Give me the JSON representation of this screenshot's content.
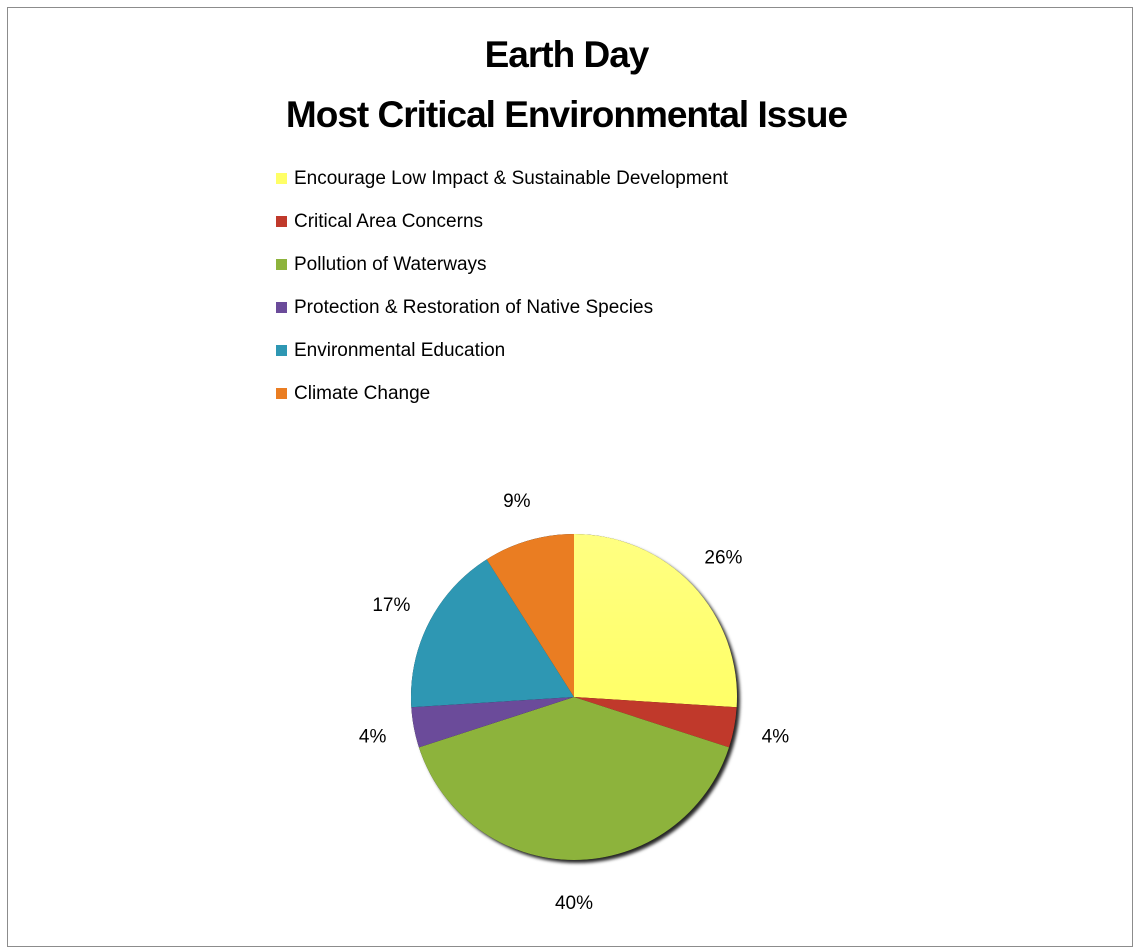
{
  "chart_data": {
    "type": "pie",
    "title": [
      "Earth Day",
      "Most Critical Environmental Issue"
    ],
    "legend_position": "top",
    "series": [
      {
        "name": "Encourage Low Impact & Sustainable Development",
        "value": 26,
        "label": "26%",
        "color": "#ffff66"
      },
      {
        "name": "Critical Area Concerns",
        "value": 4,
        "label": "4%",
        "color": "#c0392b"
      },
      {
        "name": "Pollution of Waterways",
        "value": 40,
        "label": "40%",
        "color": "#8db33c"
      },
      {
        "name": "Protection & Restoration of Native Species",
        "value": 4,
        "label": "4%",
        "color": "#6b4b9a"
      },
      {
        "name": "Environmental Education",
        "value": 17,
        "label": "17%",
        "color": "#2e97b3"
      },
      {
        "name": "Climate Change",
        "value": 9,
        "label": "9%",
        "color": "#ea7d22"
      }
    ]
  }
}
